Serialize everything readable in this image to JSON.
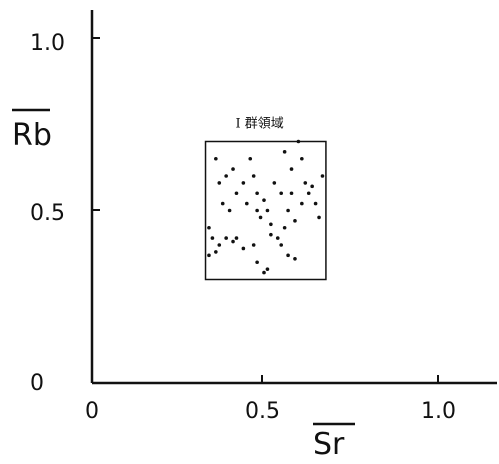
{
  "chart_data": {
    "type": "scatter",
    "xlabel": "Sr",
    "ylabel": "Rb",
    "xlim": [
      0,
      1.2
    ],
    "ylim": [
      0,
      1.1
    ],
    "origin_label": "0",
    "x_ticks": [
      {
        "value": 0,
        "label": "0"
      },
      {
        "value": 0.5,
        "label": "0.5"
      },
      {
        "value": 1.0,
        "label": "1.0"
      }
    ],
    "y_ticks": [
      {
        "value": 0.5,
        "label": "0.5"
      },
      {
        "value": 1.0,
        "label": "1.0"
      }
    ],
    "grid": false,
    "region": {
      "label": "I 群領域",
      "x_range": [
        0.33,
        0.68
      ],
      "y_range": [
        0.3,
        0.7
      ]
    },
    "points": [
      {
        "x": 0.36,
        "y": 0.65
      },
      {
        "x": 0.39,
        "y": 0.6
      },
      {
        "x": 0.41,
        "y": 0.62
      },
      {
        "x": 0.44,
        "y": 0.58
      },
      {
        "x": 0.46,
        "y": 0.65
      },
      {
        "x": 0.47,
        "y": 0.6
      },
      {
        "x": 0.48,
        "y": 0.55
      },
      {
        "x": 0.37,
        "y": 0.58
      },
      {
        "x": 0.38,
        "y": 0.52
      },
      {
        "x": 0.4,
        "y": 0.5
      },
      {
        "x": 0.42,
        "y": 0.55
      },
      {
        "x": 0.45,
        "y": 0.52
      },
      {
        "x": 0.48,
        "y": 0.5
      },
      {
        "x": 0.49,
        "y": 0.48
      },
      {
        "x": 0.5,
        "y": 0.53
      },
      {
        "x": 0.51,
        "y": 0.5
      },
      {
        "x": 0.52,
        "y": 0.46
      },
      {
        "x": 0.56,
        "y": 0.67
      },
      {
        "x": 0.58,
        "y": 0.62
      },
      {
        "x": 0.6,
        "y": 0.7
      },
      {
        "x": 0.61,
        "y": 0.65
      },
      {
        "x": 0.62,
        "y": 0.58
      },
      {
        "x": 0.63,
        "y": 0.55
      },
      {
        "x": 0.65,
        "y": 0.52
      },
      {
        "x": 0.67,
        "y": 0.6
      },
      {
        "x": 0.66,
        "y": 0.48
      },
      {
        "x": 0.55,
        "y": 0.55
      },
      {
        "x": 0.57,
        "y": 0.5
      },
      {
        "x": 0.59,
        "y": 0.47
      },
      {
        "x": 0.61,
        "y": 0.52
      },
      {
        "x": 0.64,
        "y": 0.57
      },
      {
        "x": 0.56,
        "y": 0.45
      },
      {
        "x": 0.34,
        "y": 0.45
      },
      {
        "x": 0.35,
        "y": 0.42
      },
      {
        "x": 0.34,
        "y": 0.37
      },
      {
        "x": 0.36,
        "y": 0.38
      },
      {
        "x": 0.37,
        "y": 0.4
      },
      {
        "x": 0.39,
        "y": 0.42
      },
      {
        "x": 0.41,
        "y": 0.41
      },
      {
        "x": 0.42,
        "y": 0.42
      },
      {
        "x": 0.44,
        "y": 0.39
      },
      {
        "x": 0.47,
        "y": 0.4
      },
      {
        "x": 0.48,
        "y": 0.35
      },
      {
        "x": 0.5,
        "y": 0.32
      },
      {
        "x": 0.51,
        "y": 0.33
      },
      {
        "x": 0.52,
        "y": 0.43
      },
      {
        "x": 0.54,
        "y": 0.42
      },
      {
        "x": 0.55,
        "y": 0.4
      },
      {
        "x": 0.57,
        "y": 0.37
      },
      {
        "x": 0.59,
        "y": 0.36
      },
      {
        "x": 0.53,
        "y": 0.58
      },
      {
        "x": 0.58,
        "y": 0.55
      }
    ]
  }
}
